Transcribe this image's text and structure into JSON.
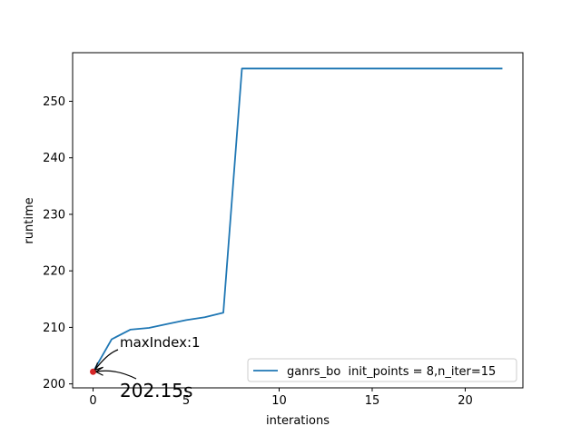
{
  "chart_data": {
    "type": "line",
    "xlabel": "interations",
    "ylabel": "runtime",
    "xlim": [
      -1.1,
      23.1
    ],
    "ylim": [
      199.3,
      258.6
    ],
    "xticks": [
      0,
      5,
      10,
      15,
      20
    ],
    "yticks": [
      200,
      210,
      220,
      230,
      240,
      250
    ],
    "legend_position": "lower-right",
    "series": [
      {
        "name": "ganrs_bo  init_points = 8,n_iter=15",
        "color": "#1f77b4",
        "x": [
          0,
          1,
          2,
          3,
          4,
          5,
          6,
          7,
          8,
          9,
          10,
          11,
          12,
          13,
          14,
          15,
          16,
          17,
          18,
          19,
          20,
          21,
          22
        ],
        "y": [
          202.15,
          207.9,
          209.6,
          209.9,
          210.6,
          211.3,
          211.8,
          212.6,
          255.8,
          255.8,
          255.8,
          255.8,
          255.8,
          255.8,
          255.8,
          255.8,
          255.8,
          255.8,
          255.8,
          255.8,
          255.8,
          255.8,
          255.8
        ]
      }
    ],
    "marker": {
      "x": 0,
      "y": 202.15,
      "color": "#d62728"
    },
    "annotations": [
      {
        "text": "maxIndex:1",
        "x": 1.4,
        "y": 206.2
      },
      {
        "text": "202.15s",
        "x": 1.4,
        "y": 198.7
      }
    ]
  }
}
